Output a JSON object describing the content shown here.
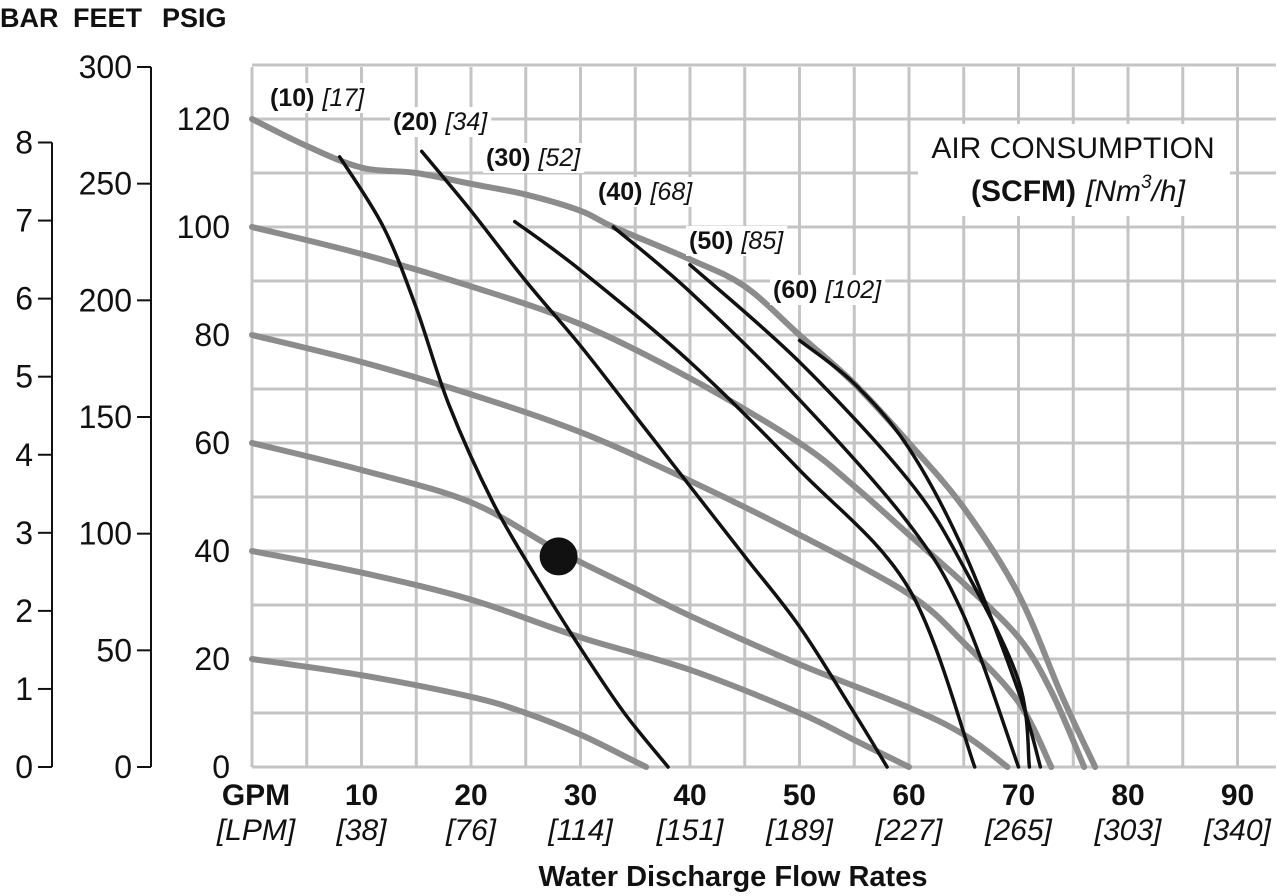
{
  "chart_data": {
    "type": "line",
    "title": "",
    "xlabel": "Water Discharge Flow Rates",
    "axis_units": {
      "bar": "BAR",
      "feet": "FEET",
      "psig": "PSIG"
    },
    "x_unit_labels": {
      "primary": "GPM",
      "secondary": "[LPM]"
    },
    "xlim": [
      0,
      93
    ],
    "x_ticks": [
      {
        "gpm": "10",
        "lpm": "[38]"
      },
      {
        "gpm": "20",
        "lpm": "[76]"
      },
      {
        "gpm": "30",
        "lpm": "[114]"
      },
      {
        "gpm": "40",
        "lpm": "[151]"
      },
      {
        "gpm": "50",
        "lpm": "[189]"
      },
      {
        "gpm": "60",
        "lpm": "[227]"
      },
      {
        "gpm": "70",
        "lpm": "[265]"
      },
      {
        "gpm": "80",
        "lpm": "[303]"
      },
      {
        "gpm": "90",
        "lpm": "[340]"
      }
    ],
    "psig_axis": {
      "ylim": [
        0,
        130
      ],
      "ticks": [
        "0",
        "20",
        "40",
        "60",
        "80",
        "100",
        "120"
      ]
    },
    "feet_axis": {
      "ylim": [
        0,
        300
      ],
      "ticks": [
        "0",
        "50",
        "100",
        "150",
        "200",
        "250",
        "300"
      ]
    },
    "bar_axis": {
      "ylim": [
        0,
        8
      ],
      "ticks": [
        "0",
        "1",
        "2",
        "3",
        "4",
        "5",
        "6",
        "7",
        "8"
      ]
    },
    "grid": true,
    "legend": {
      "title": "AIR CONSUMPTION",
      "units_bold": "(SCFM)",
      "units_italic_pre": "[Nm",
      "units_sup": "3",
      "units_italic_post": "/h]",
      "placement": "top-right"
    },
    "head_curves": [
      {
        "inlet_psig": 120,
        "points": [
          [
            0,
            120
          ],
          [
            5,
            115
          ],
          [
            10,
            111
          ],
          [
            15,
            110
          ],
          [
            20,
            108
          ],
          [
            25,
            106
          ],
          [
            30,
            103
          ],
          [
            33,
            100
          ],
          [
            40,
            94
          ],
          [
            45,
            89
          ],
          [
            50,
            80
          ],
          [
            55,
            71
          ],
          [
            60,
            60
          ],
          [
            65,
            48
          ],
          [
            70,
            32
          ],
          [
            74,
            13
          ],
          [
            77,
            0
          ]
        ]
      },
      {
        "inlet_psig": 100,
        "points": [
          [
            0,
            100
          ],
          [
            10,
            95
          ],
          [
            20,
            89
          ],
          [
            30,
            82
          ],
          [
            40,
            72
          ],
          [
            50,
            60
          ],
          [
            55,
            52
          ],
          [
            60,
            43
          ],
          [
            65,
            34
          ],
          [
            70,
            24
          ],
          [
            73,
            14
          ],
          [
            76,
            0
          ]
        ]
      },
      {
        "inlet_psig": 80,
        "points": [
          [
            0,
            80
          ],
          [
            10,
            75
          ],
          [
            20,
            69
          ],
          [
            30,
            62
          ],
          [
            40,
            53
          ],
          [
            50,
            43
          ],
          [
            60,
            32
          ],
          [
            65,
            23
          ],
          [
            70,
            12
          ],
          [
            73,
            0
          ]
        ]
      },
      {
        "inlet_psig": 60,
        "points": [
          [
            0,
            60
          ],
          [
            10,
            55
          ],
          [
            20,
            49
          ],
          [
            28,
            40
          ],
          [
            35,
            33
          ],
          [
            40,
            28
          ],
          [
            50,
            19
          ],
          [
            60,
            11
          ],
          [
            65,
            6
          ],
          [
            69,
            0
          ]
        ]
      },
      {
        "inlet_psig": 40,
        "points": [
          [
            0,
            40
          ],
          [
            10,
            36
          ],
          [
            20,
            31
          ],
          [
            30,
            24
          ],
          [
            40,
            18
          ],
          [
            50,
            10
          ],
          [
            55,
            5
          ],
          [
            60,
            0
          ]
        ]
      },
      {
        "inlet_psig": 20,
        "points": [
          [
            0,
            20
          ],
          [
            10,
            17
          ],
          [
            20,
            13
          ],
          [
            25,
            10
          ],
          [
            30,
            6
          ],
          [
            35,
            1
          ],
          [
            36,
            0
          ]
        ]
      }
    ],
    "air_curves": [
      {
        "scfm": "(10)",
        "nm3h": "[17]",
        "points": [
          [
            8,
            113
          ],
          [
            12,
            100
          ],
          [
            15,
            85
          ],
          [
            18,
            67
          ],
          [
            22,
            49
          ],
          [
            26,
            35
          ],
          [
            30,
            22
          ],
          [
            34,
            10
          ],
          [
            38,
            0
          ]
        ]
      },
      {
        "scfm": "(20)",
        "nm3h": "[34]",
        "points": [
          [
            15.5,
            114
          ],
          [
            20,
            103
          ],
          [
            25,
            90
          ],
          [
            30,
            78
          ],
          [
            35,
            65
          ],
          [
            40,
            52
          ],
          [
            45,
            39
          ],
          [
            50,
            26
          ],
          [
            55,
            10
          ],
          [
            58,
            0
          ]
        ]
      },
      {
        "scfm": "(30)",
        "nm3h": "[52]",
        "points": [
          [
            24,
            101
          ],
          [
            30,
            92
          ],
          [
            40,
            75
          ],
          [
            50,
            55
          ],
          [
            60,
            33
          ],
          [
            66,
            0
          ]
        ]
      },
      {
        "scfm": "(40)",
        "nm3h": "[68]",
        "points": [
          [
            33,
            100
          ],
          [
            40,
            88
          ],
          [
            50,
            68
          ],
          [
            60,
            45
          ],
          [
            65,
            28
          ],
          [
            70,
            0
          ]
        ]
      },
      {
        "scfm": "(50)",
        "nm3h": "[85]",
        "points": [
          [
            40,
            93
          ],
          [
            50,
            75
          ],
          [
            60,
            53
          ],
          [
            65,
            37
          ],
          [
            70,
            16
          ],
          [
            71,
            0
          ]
        ]
      },
      {
        "scfm": "(60)",
        "nm3h": "[102]",
        "points": [
          [
            50,
            79
          ],
          [
            55,
            71
          ],
          [
            60,
            59
          ],
          [
            65,
            40
          ],
          [
            70,
            14
          ],
          [
            72,
            0
          ]
        ]
      }
    ],
    "marker": {
      "gpm": 28,
      "psig": 39
    }
  }
}
